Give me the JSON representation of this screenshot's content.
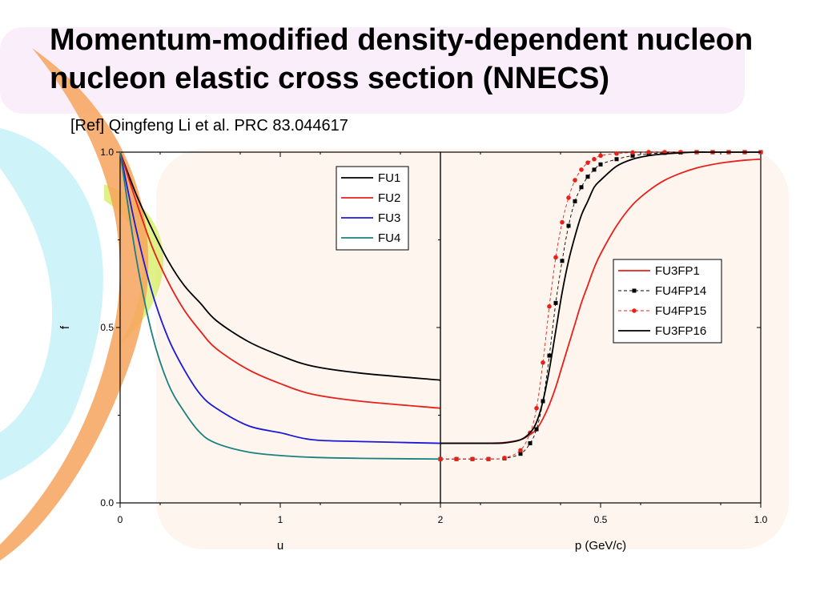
{
  "slide": {
    "title": "Momentum-modified density-dependent nucleon nucleon elastic cross section (NNECS)",
    "reference": "[Ref] Qingfeng Li et al. PRC 83.044617",
    "colors": {
      "background_panel": "#fdf6ef",
      "swoosh_orange": "#f7a35c",
      "swoosh_cyan": "#9ee8f0",
      "swoosh_green": "#d8ee6a",
      "title_band": "#f8e8f8"
    }
  },
  "chart_data": [
    {
      "type": "line",
      "xlabel": "u",
      "ylabel": "f",
      "xlim": [
        0,
        2
      ],
      "ylim": [
        0,
        1
      ],
      "xticks": [
        "0",
        "1",
        "2"
      ],
      "yticks": [
        "0.0",
        "0.5",
        "1.0"
      ],
      "legend_position": "top-right",
      "grid": false,
      "x": [
        0,
        0.1,
        0.2,
        0.3,
        0.4,
        0.5,
        0.6,
        0.8,
        1.0,
        1.2,
        1.5,
        2.0
      ],
      "series": [
        {
          "name": "FU1",
          "color": "#000000",
          "marker": "none",
          "values": [
            1.0,
            0.88,
            0.78,
            0.69,
            0.62,
            0.57,
            0.52,
            0.46,
            0.42,
            0.39,
            0.37,
            0.35
          ]
        },
        {
          "name": "FU2",
          "color": "#e8201a",
          "marker": "none",
          "values": [
            1.0,
            0.86,
            0.73,
            0.63,
            0.55,
            0.49,
            0.44,
            0.38,
            0.34,
            0.31,
            0.29,
            0.27
          ]
        },
        {
          "name": "FU3",
          "color": "#1a1ad8",
          "marker": "none",
          "values": [
            1.0,
            0.78,
            0.6,
            0.47,
            0.38,
            0.31,
            0.27,
            0.22,
            0.2,
            0.18,
            0.175,
            0.17
          ]
        },
        {
          "name": "FU4",
          "color": "#1a8080",
          "marker": "none",
          "values": [
            1.0,
            0.7,
            0.48,
            0.34,
            0.26,
            0.2,
            0.17,
            0.145,
            0.135,
            0.13,
            0.127,
            0.125
          ]
        }
      ]
    },
    {
      "type": "line",
      "xlabel": "p (GeV/c)",
      "ylabel": "",
      "xlim": [
        0,
        1
      ],
      "ylim": [
        0,
        1
      ],
      "xticks": [
        "0.5",
        "1.0"
      ],
      "yticks": [],
      "legend_position": "center-right",
      "grid": false,
      "x": [
        0,
        0.05,
        0.1,
        0.15,
        0.2,
        0.25,
        0.28,
        0.3,
        0.32,
        0.34,
        0.36,
        0.38,
        0.4,
        0.42,
        0.44,
        0.46,
        0.48,
        0.5,
        0.55,
        0.6,
        0.65,
        0.7,
        0.75,
        0.8,
        0.85,
        0.9,
        0.95,
        1.0
      ],
      "series": [
        {
          "name": "FU3FP1",
          "color": "#e8201a",
          "marker": "none",
          "dashed": false,
          "values": [
            0.17,
            0.17,
            0.17,
            0.17,
            0.172,
            0.18,
            0.195,
            0.21,
            0.24,
            0.28,
            0.33,
            0.39,
            0.45,
            0.51,
            0.57,
            0.62,
            0.67,
            0.71,
            0.79,
            0.85,
            0.89,
            0.92,
            0.94,
            0.955,
            0.965,
            0.972,
            0.977,
            0.98
          ]
        },
        {
          "name": "FU4FP14",
          "color": "#000000",
          "marker": "square",
          "dashed": true,
          "values": [
            0.125,
            0.125,
            0.125,
            0.125,
            0.127,
            0.14,
            0.17,
            0.21,
            0.29,
            0.42,
            0.57,
            0.69,
            0.79,
            0.86,
            0.9,
            0.93,
            0.95,
            0.965,
            0.98,
            0.99,
            0.995,
            0.998,
            0.999,
            1.0,
            1.0,
            1.0,
            1.0,
            1.0
          ]
        },
        {
          "name": "FU4FP15",
          "color": "#e8201a",
          "marker": "circle",
          "dashed": true,
          "values": [
            0.125,
            0.125,
            0.125,
            0.125,
            0.128,
            0.15,
            0.2,
            0.27,
            0.4,
            0.56,
            0.7,
            0.8,
            0.87,
            0.92,
            0.95,
            0.97,
            0.98,
            0.99,
            0.996,
            0.999,
            1.0,
            1.0,
            1.0,
            1.0,
            1.0,
            1.0,
            1.0,
            1.0
          ]
        },
        {
          "name": "FU3FP16",
          "color": "#000000",
          "marker": "none",
          "dashed": false,
          "values": [
            0.17,
            0.17,
            0.17,
            0.17,
            0.171,
            0.18,
            0.2,
            0.23,
            0.29,
            0.38,
            0.49,
            0.6,
            0.69,
            0.76,
            0.82,
            0.86,
            0.9,
            0.92,
            0.96,
            0.98,
            0.99,
            0.995,
            0.998,
            1.0,
            1.0,
            1.0,
            1.0,
            1.0
          ]
        }
      ]
    }
  ]
}
